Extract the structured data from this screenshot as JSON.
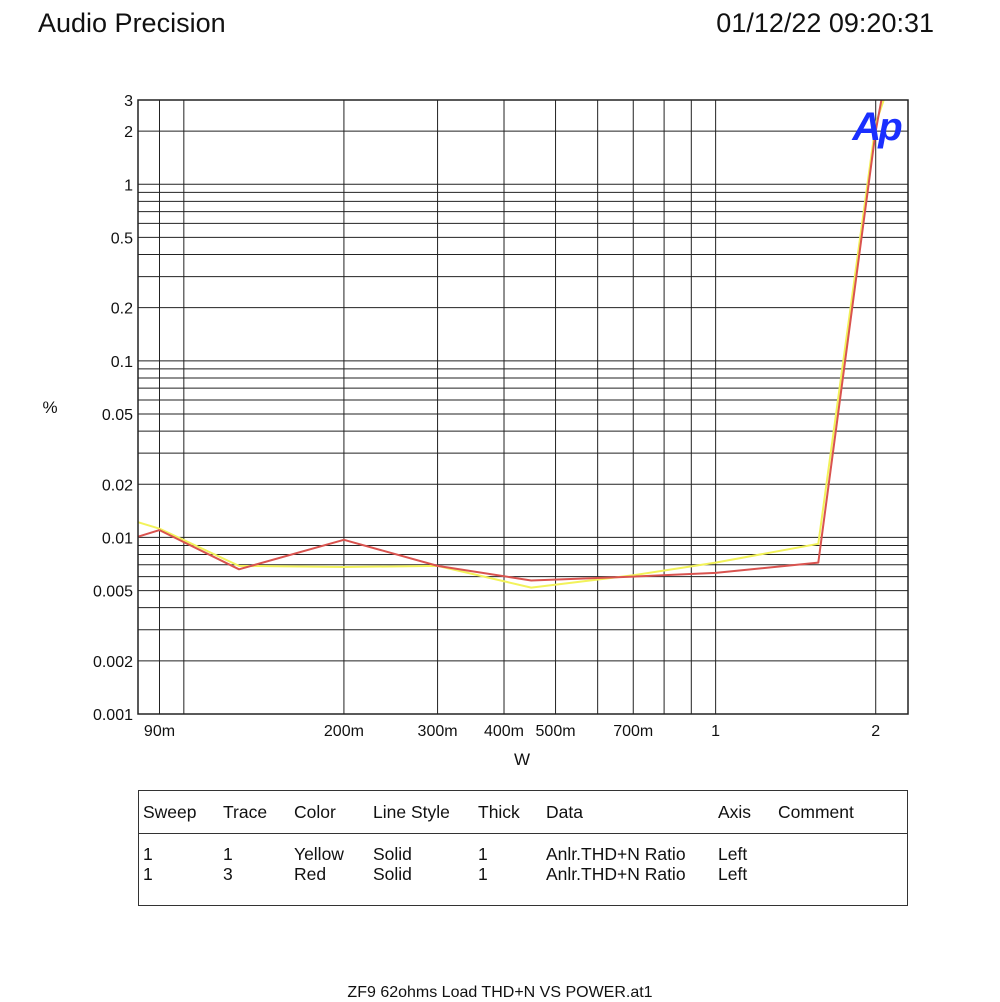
{
  "header": {
    "app_title": "Audio Precision",
    "timestamp": "01/12/22 09:20:31"
  },
  "logo": {
    "text": "Ap",
    "color": "#1a2fff"
  },
  "chart_data": {
    "type": "line",
    "xlabel": "W",
    "ylabel": "%",
    "x_scale": "log",
    "y_scale": "log",
    "xlim": [
      0.082,
      2.3
    ],
    "ylim": [
      0.001,
      3
    ],
    "x_ticks": [
      {
        "value": 0.09,
        "label": "90m"
      },
      {
        "value": 0.2,
        "label": "200m"
      },
      {
        "value": 0.3,
        "label": "300m"
      },
      {
        "value": 0.4,
        "label": "400m"
      },
      {
        "value": 0.5,
        "label": "500m"
      },
      {
        "value": 0.7,
        "label": "700m"
      },
      {
        "value": 1,
        "label": "1"
      },
      {
        "value": 2,
        "label": "2"
      }
    ],
    "x_grid": [
      0.09,
      0.1,
      0.2,
      0.3,
      0.4,
      0.5,
      0.6,
      0.7,
      0.8,
      0.9,
      1,
      2
    ],
    "y_ticks": [
      {
        "value": 3,
        "label": "3"
      },
      {
        "value": 2,
        "label": "2"
      },
      {
        "value": 1,
        "label": "1"
      },
      {
        "value": 0.5,
        "label": "0.5"
      },
      {
        "value": 0.2,
        "label": "0.2"
      },
      {
        "value": 0.1,
        "label": "0.1"
      },
      {
        "value": 0.05,
        "label": "0.05"
      },
      {
        "value": 0.02,
        "label": "0.02"
      },
      {
        "value": 0.01,
        "label": "0.01"
      },
      {
        "value": 0.005,
        "label": "0.005"
      },
      {
        "value": 0.002,
        "label": "0.002"
      },
      {
        "value": 0.001,
        "label": "0.001"
      }
    ],
    "y_grid": [
      0.001,
      0.002,
      0.003,
      0.004,
      0.005,
      0.006,
      0.007,
      0.008,
      0.009,
      0.01,
      0.02,
      0.03,
      0.04,
      0.05,
      0.06,
      0.07,
      0.08,
      0.09,
      0.1,
      0.2,
      0.3,
      0.4,
      0.5,
      0.6,
      0.7,
      0.8,
      0.9,
      1,
      2,
      3
    ],
    "grid": true,
    "series": [
      {
        "name": "Yellow",
        "color": "#f2f25a",
        "x": [
          0.082,
          0.09,
          0.127,
          0.2,
          0.3,
          0.45,
          0.7,
          1.0,
          1.56,
          2.0,
          2.07
        ],
        "y": [
          0.0122,
          0.0112,
          0.0069,
          0.0068,
          0.0069,
          0.0052,
          0.0061,
          0.0072,
          0.0092,
          2.2,
          3.0
        ]
      },
      {
        "name": "Red",
        "color": "#d9534f",
        "x": [
          0.082,
          0.09,
          0.127,
          0.2,
          0.3,
          0.45,
          0.7,
          1.0,
          1.56,
          2.0,
          2.05
        ],
        "y": [
          0.0101,
          0.011,
          0.0066,
          0.0097,
          0.0069,
          0.0057,
          0.006,
          0.0063,
          0.0072,
          2.0,
          3.0
        ]
      }
    ]
  },
  "legend": {
    "headers": {
      "sweep": "Sweep",
      "trace": "Trace",
      "color": "Color",
      "line_style": "Line Style",
      "thick": "Thick",
      "data": "Data",
      "axis": "Axis",
      "comment": "Comment"
    },
    "rows": [
      {
        "sweep": "1",
        "trace": "1",
        "color": "Yellow",
        "line_style": "Solid",
        "thick": "1",
        "data": "Anlr.THD+N Ratio",
        "axis": "Left",
        "comment": ""
      },
      {
        "sweep": "1",
        "trace": "3",
        "color": "Red",
        "line_style": "Solid",
        "thick": "1",
        "data": "Anlr.THD+N Ratio",
        "axis": "Left",
        "comment": ""
      }
    ]
  },
  "footer": {
    "filename": "ZF9 62ohms Load THD+N VS POWER.at1"
  }
}
